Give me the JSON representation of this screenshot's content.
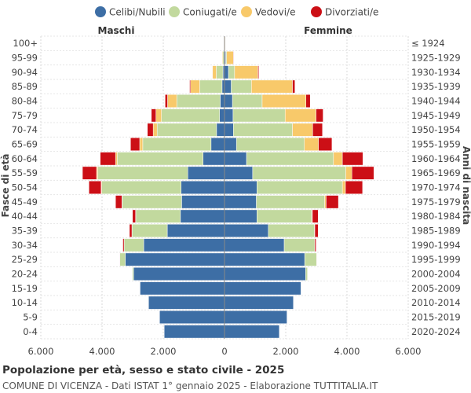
{
  "chart_data": {
    "type": "bar",
    "title": "Popolazione per età, sesso e stato civile - 2025",
    "subtitle": "COMUNE DI VICENZA - Dati ISTAT 1° gennaio 2025 - Elaborazione TUTTITALIA.IT",
    "left_group_label": "Maschi",
    "right_group_label": "Femmine",
    "ylabel_left": "Fasce di età",
    "ylabel_right": "Anni di nascita",
    "x_tick_labels": [
      "6.000",
      "4.000",
      "2.000",
      "0",
      "2.000",
      "4.000",
      "6.000"
    ],
    "x_ticks": [
      -6000,
      -4000,
      -2000,
      0,
      2000,
      4000,
      6000
    ],
    "xlim": [
      -6000,
      6000
    ],
    "grid": true,
    "legend_position": "top",
    "age_groups": [
      "100+",
      "95-99",
      "90-94",
      "85-89",
      "80-84",
      "75-79",
      "70-74",
      "65-69",
      "60-64",
      "55-59",
      "50-54",
      "45-49",
      "40-44",
      "35-39",
      "30-34",
      "25-29",
      "20-24",
      "15-19",
      "10-14",
      "5-9",
      "0-4"
    ],
    "birth_years": [
      "≤ 1924",
      "1925-1929",
      "1930-1934",
      "1935-1939",
      "1940-1944",
      "1945-1949",
      "1950-1954",
      "1955-1959",
      "1960-1964",
      "1965-1969",
      "1970-1974",
      "1975-1979",
      "1980-1984",
      "1985-1989",
      "1990-1994",
      "1995-1999",
      "2000-2004",
      "2005-2009",
      "2010-2014",
      "2015-2019",
      "2020-2024"
    ],
    "series": [
      {
        "name": "Celibi/Nubili",
        "color": "#3d6ea5",
        "males": [
          5,
          20,
          50,
          80,
          140,
          160,
          260,
          440,
          700,
          1200,
          1420,
          1400,
          1440,
          1870,
          2640,
          3240,
          2970,
          2760,
          2480,
          2120,
          1970
        ],
        "females": [
          10,
          40,
          130,
          220,
          260,
          280,
          290,
          390,
          720,
          920,
          1060,
          1040,
          1060,
          1430,
          1950,
          2620,
          2650,
          2500,
          2250,
          2040,
          1790
        ]
      },
      {
        "name": "Coniugati/e",
        "color": "#c2d99e",
        "males": [
          5,
          40,
          220,
          730,
          1420,
          1900,
          1940,
          2230,
          2800,
          2940,
          2590,
          1940,
          1460,
          1150,
          640,
          180,
          40,
          10,
          0,
          0,
          0
        ],
        "females": [
          5,
          30,
          200,
          660,
          970,
          1700,
          1930,
          2220,
          2840,
          3040,
          2790,
          2230,
          1790,
          1510,
          1000,
          390,
          60,
          10,
          0,
          0,
          0
        ]
      },
      {
        "name": "Vedovi/e",
        "color": "#f8c96a",
        "males": [
          5,
          20,
          120,
          300,
          300,
          180,
          130,
          100,
          60,
          40,
          20,
          10,
          5,
          5,
          0,
          0,
          0,
          0,
          0,
          0,
          0
        ],
        "females": [
          15,
          220,
          760,
          1340,
          1430,
          1010,
          660,
          460,
          290,
          200,
          100,
          50,
          20,
          10,
          0,
          0,
          0,
          0,
          0,
          0,
          0
        ]
      },
      {
        "name": "Divorziati/e",
        "color": "#cc0f16",
        "males": [
          0,
          0,
          10,
          30,
          80,
          150,
          190,
          300,
          500,
          460,
          400,
          210,
          100,
          80,
          40,
          10,
          0,
          0,
          0,
          0,
          0
        ],
        "females": [
          5,
          15,
          30,
          80,
          140,
          230,
          320,
          440,
          670,
          720,
          560,
          400,
          190,
          110,
          40,
          10,
          0,
          0,
          0,
          0,
          0
        ]
      }
    ]
  }
}
